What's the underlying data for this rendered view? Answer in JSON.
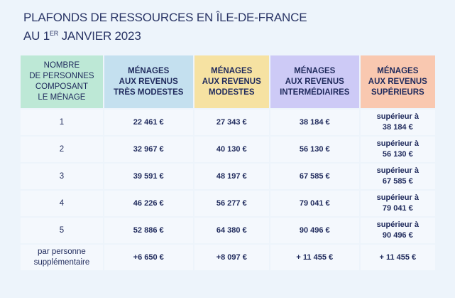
{
  "title": {
    "line1": "PLAFONDS DE RESSOURCES EN ÎLE-DE-FRANCE",
    "line2_prefix": "AU 1",
    "line2_sup": "ER",
    "line2_suffix": " JANVIER 2023"
  },
  "headers": [
    {
      "lines": [
        "NOMBRE",
        "DE PERSONNES",
        "COMPOSANT",
        "LE MÉNAGE"
      ],
      "color": "#bde8d6"
    },
    {
      "lines": [
        "MÉNAGES",
        "AUX REVENUS",
        "TRÈS MODESTES"
      ],
      "color": "#c4e0ef"
    },
    {
      "lines": [
        "MÉNAGES",
        "AUX REVENUS",
        "MODESTES"
      ],
      "color": "#f6e2a2"
    },
    {
      "lines": [
        "MÉNAGES",
        "AUX REVENUS",
        "INTERMÉDIAIRES"
      ],
      "color": "#cdcaf6"
    },
    {
      "lines": [
        "MÉNAGES",
        "AUX REVENUS",
        "SUPÉRIEURS"
      ],
      "color": "#f9c8b0"
    }
  ],
  "rows": [
    {
      "persons": "1",
      "tres_modestes": "22 461 €",
      "modestes": "27 343 €",
      "intermediaires": "38 184 €",
      "superieurs": [
        "supérieur à",
        "38 184 €"
      ]
    },
    {
      "persons": "2",
      "tres_modestes": "32 967 €",
      "modestes": "40 130 €",
      "intermediaires": "56 130 €",
      "superieurs": [
        "supérieur à",
        "56 130 €"
      ]
    },
    {
      "persons": "3",
      "tres_modestes": "39 591 €",
      "modestes": "48 197 €",
      "intermediaires": "67 585 €",
      "superieurs": [
        "supérieur à",
        "67 585 €"
      ]
    },
    {
      "persons": "4",
      "tres_modestes": "46 226 €",
      "modestes": "56 277 €",
      "intermediaires": "79 041 €",
      "superieurs": [
        "supérieur à",
        "79 041 €"
      ]
    },
    {
      "persons": "5",
      "tres_modestes": "52 886 €",
      "modestes": "64 380 €",
      "intermediaires": "90 496 €",
      "superieurs": [
        "supérieur à",
        "90 496 €"
      ]
    }
  ],
  "extra_row": {
    "label": [
      "par personne",
      "supplémentaire"
    ],
    "tres_modestes": "+6 650 €",
    "modestes": "+8 097 €",
    "intermediaires": "+ 11 455 €",
    "superieurs": "+ 11 455 €"
  }
}
